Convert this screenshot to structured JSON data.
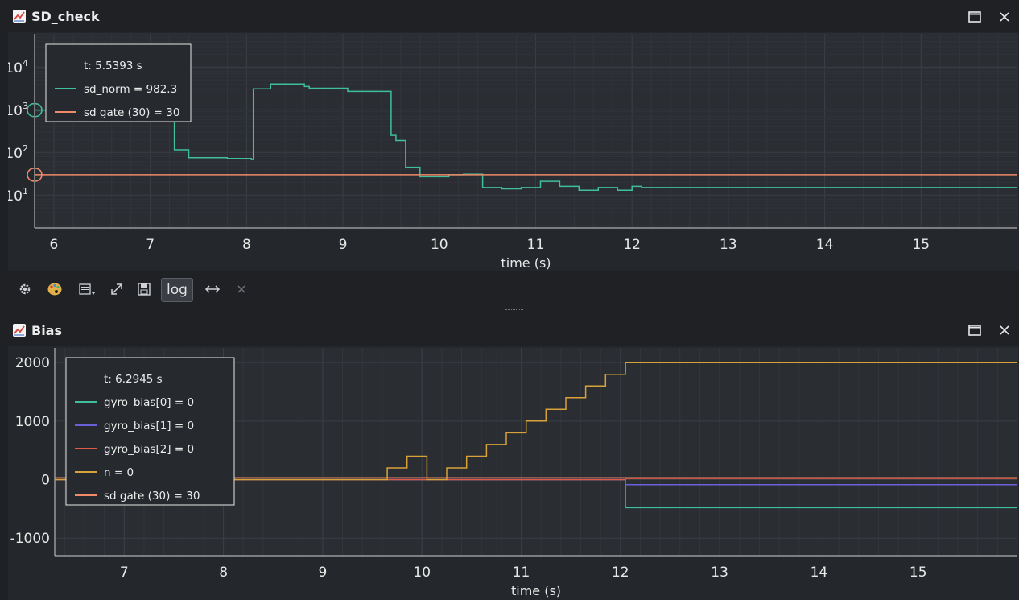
{
  "top_window": {
    "title": "SD_check",
    "icon": "chart-icon",
    "maximize_icon": "maximize-icon",
    "close_icon": "close-icon"
  },
  "bottom_window": {
    "title": "Bias",
    "icon": "chart-icon",
    "maximize_icon": "maximize-icon",
    "close_icon": "close-icon"
  },
  "toolbar": {
    "items": [
      "settings-icon",
      "palette-icon",
      "legend-menu-icon",
      "expand-icon",
      "save-icon"
    ],
    "log_label": "log",
    "arrows_icon": "horizontal-arrows-icon",
    "clear_icon": "clear-icon"
  },
  "colors": {
    "background": "#1f2125",
    "plot_bg": "#24272b",
    "grid": "#3b3f45",
    "teal": "#3fbf9c",
    "orange_gate": "#f08a6a",
    "blue": "#6a60d8",
    "red": "#e05a45",
    "gold": "#d8a23a"
  },
  "chart_data": [
    {
      "type": "line",
      "title": "SD_check",
      "xlabel": "time (s)",
      "ylabel": "",
      "yscale": "log",
      "xlim": [
        5.8,
        16.0
      ],
      "ylim": [
        1.7,
        60000
      ],
      "x_ticks": [
        6,
        7,
        8,
        9,
        10,
        11,
        12,
        13,
        14,
        15
      ],
      "y_ticks": [
        {
          "value": 10,
          "label_base": "10",
          "label_exp": "1"
        },
        {
          "value": 100,
          "label_base": "10",
          "label_exp": "2"
        },
        {
          "value": 1000,
          "label_base": "10",
          "label_exp": "3"
        },
        {
          "value": 10000,
          "label_base": "10",
          "label_exp": "4"
        }
      ],
      "grid": true,
      "legend": {
        "position": "top-left",
        "time_label": "t: 5.5393 s",
        "entries": [
          {
            "text": "sd_norm = 982.3",
            "color": "#3fbf9c"
          },
          {
            "text": "sd gate (30) = 30",
            "color": "#f08a6a"
          }
        ]
      },
      "series": [
        {
          "name": "sd_norm",
          "color": "#3fbf9c",
          "step": true,
          "x": [
            5.8,
            7.2,
            7.25,
            7.4,
            7.8,
            8.05,
            8.07,
            8.25,
            8.6,
            8.65,
            9.05,
            9.5,
            9.55,
            9.65,
            9.8,
            10.1,
            10.25,
            10.45,
            10.65,
            10.85,
            11.05,
            11.25,
            11.45,
            11.65,
            11.85,
            12.0,
            12.1,
            16.0
          ],
          "y": [
            982.3,
            982.3,
            115,
            75,
            72,
            68,
            3100,
            4000,
            3500,
            3200,
            2700,
            250,
            190,
            45,
            27,
            30,
            31,
            15,
            14,
            15,
            21,
            16,
            13,
            15,
            13,
            16,
            15,
            15
          ]
        },
        {
          "name": "sd gate (30)",
          "color": "#f08a6a",
          "step": false,
          "x": [
            5.8,
            16.0
          ],
          "y": [
            30,
            30
          ]
        }
      ],
      "cursor": {
        "x": 5.5393,
        "marker_values": [
          982.3,
          30
        ]
      }
    },
    {
      "type": "line",
      "title": "Bias",
      "xlabel": "time (s)",
      "ylabel": "",
      "xlim": [
        6.3,
        16.0
      ],
      "ylim": [
        -1300,
        2250
      ],
      "x_ticks": [
        7,
        8,
        9,
        10,
        11,
        12,
        13,
        14,
        15
      ],
      "y_ticks": [
        -1000,
        0,
        1000,
        2000
      ],
      "grid": true,
      "legend": {
        "position": "top-left",
        "time_label": "t: 6.2945 s",
        "entries": [
          {
            "text": "gyro_bias[0] = 0",
            "color": "#3fbf9c"
          },
          {
            "text": "gyro_bias[1] = 0",
            "color": "#6a60d8"
          },
          {
            "text": "gyro_bias[2] = 0",
            "color": "#e05a45"
          },
          {
            "text": "n = 0",
            "color": "#d8a23a"
          },
          {
            "text": "sd gate (30) = 30",
            "color": "#f08a6a"
          }
        ]
      },
      "series": [
        {
          "name": "gyro_bias[0]",
          "color": "#3fbf9c",
          "step": true,
          "x": [
            6.3,
            12.05,
            12.05,
            16.0
          ],
          "y": [
            0,
            0,
            -480,
            -480
          ]
        },
        {
          "name": "gyro_bias[1]",
          "color": "#6a60d8",
          "step": true,
          "x": [
            6.3,
            12.05,
            12.05,
            16.0
          ],
          "y": [
            0,
            0,
            -85,
            -85
          ]
        },
        {
          "name": "gyro_bias[2]",
          "color": "#e05a45",
          "step": true,
          "x": [
            6.3,
            12.05,
            12.05,
            16.0
          ],
          "y": [
            0,
            0,
            20,
            20
          ]
        },
        {
          "name": "n",
          "color": "#d8a23a",
          "step": true,
          "x": [
            6.3,
            9.65,
            9.85,
            10.05,
            10.25,
            10.45,
            10.65,
            10.85,
            11.05,
            11.25,
            11.45,
            11.65,
            11.85,
            12.05,
            16.0
          ],
          "y": [
            0,
            200,
            400,
            0,
            200,
            400,
            600,
            800,
            1000,
            1200,
            1400,
            1600,
            1800,
            2000,
            2000
          ]
        },
        {
          "name": "sd gate (30)",
          "color": "#f08a6a",
          "step": false,
          "x": [
            6.3,
            16.0
          ],
          "y": [
            30,
            30
          ]
        }
      ],
      "cursor": {
        "x": 6.2945
      }
    }
  ]
}
